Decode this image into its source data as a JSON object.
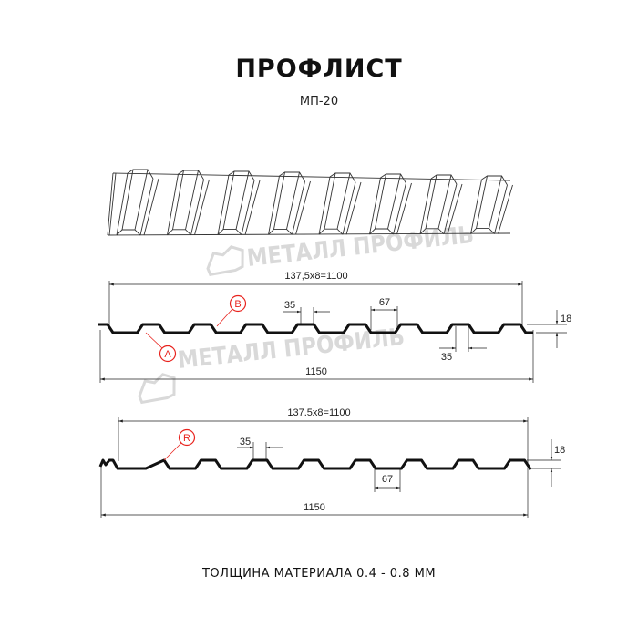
{
  "header": {
    "title": "ПРОФЛИСТ",
    "subtitle": "МП-20"
  },
  "watermark": {
    "text": "МЕТАЛЛ ПРОФИЛЬ"
  },
  "colors": {
    "profile": "#111111",
    "callout": "#e8231e",
    "watermark": "#d9d9d9"
  },
  "drawing_a": {
    "pitch_label": "137,5x8=1100",
    "total_label": "1150",
    "crest_label": "35",
    "trough_label": "67",
    "crest_label_2": "35",
    "height_label": "18",
    "callouts": [
      "A",
      "B"
    ]
  },
  "drawing_b": {
    "pitch_label": "137.5x8=1100",
    "total_label": "1150",
    "crest_label": "35",
    "trough_label": "67",
    "height_label": "18",
    "callouts": [
      "R"
    ]
  },
  "footer": {
    "thickness": "ТОЛЩИНА МАТЕРИАЛА 0.4 - 0.8 ММ"
  }
}
